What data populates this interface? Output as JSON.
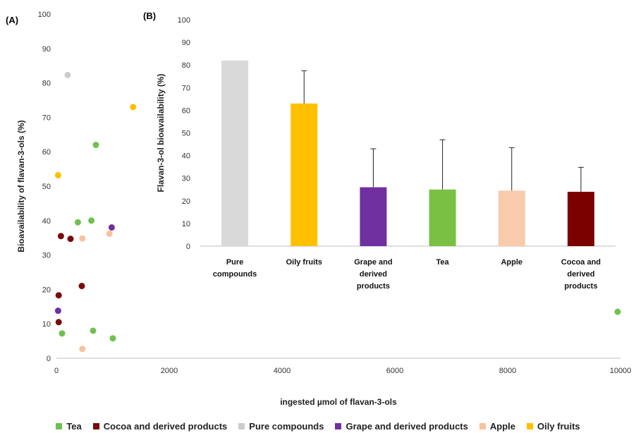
{
  "chart_data": [
    {
      "type": "scatter",
      "panel_label": "(A)",
      "xlabel": "ingested µmol of flavan-3-ols",
      "ylabel": "Bioavailability  of flavan-3-ols (%)",
      "xlim": [
        0,
        10000
      ],
      "ylim": [
        0,
        100
      ],
      "xticks": [
        0,
        2000,
        4000,
        6000,
        8000,
        10000
      ],
      "yticks": [
        0,
        10,
        20,
        30,
        40,
        50,
        60,
        70,
        80,
        90,
        100
      ],
      "grid": false,
      "legend_position": "bottom",
      "series": [
        {
          "name": "Tea",
          "color": "#70c050",
          "points": [
            [
              700,
              62
            ],
            [
              380,
              39.5
            ],
            [
              620,
              40
            ],
            [
              100,
              7.2
            ],
            [
              650,
              8
            ],
            [
              1000,
              5.8
            ],
            [
              9950,
              13.5
            ]
          ]
        },
        {
          "name": "Cocoa and derived products",
          "color": "#7a0b0b",
          "points": [
            [
              80,
              35.5
            ],
            [
              250,
              34.7
            ],
            [
              450,
              21
            ],
            [
              40,
              18.3
            ],
            [
              40,
              10.5
            ]
          ]
        },
        {
          "name": "Pure compounds",
          "color": "#cccccc",
          "points": [
            [
              200,
              82.3
            ]
          ]
        },
        {
          "name": "Grape and derived products",
          "color": "#7030a0",
          "points": [
            [
              980,
              38
            ],
            [
              30,
              13.8
            ]
          ]
        },
        {
          "name": "Apple",
          "color": "#f9c29a",
          "points": [
            [
              460,
              34.8
            ],
            [
              940,
              36.2
            ],
            [
              460,
              2.7
            ]
          ]
        },
        {
          "name": "Oily fruits",
          "color": "#ffbf00",
          "points": [
            [
              1360,
              73
            ],
            [
              30,
              53.2
            ]
          ]
        }
      ]
    },
    {
      "type": "bar",
      "panel_label": "(B)",
      "ylabel": "Flavan-3-ol bioavailability (%)",
      "ylim": [
        0,
        100
      ],
      "yticks": [
        0,
        10,
        20,
        30,
        40,
        50,
        60,
        70,
        80,
        90,
        100
      ],
      "categories": [
        [
          "Pure",
          "compounds"
        ],
        [
          "Oily fruits"
        ],
        [
          "Grape and",
          "derived",
          "products"
        ],
        [
          "Tea"
        ],
        [
          "Apple"
        ],
        [
          "Cocoa and",
          "derived",
          "products"
        ]
      ],
      "values": [
        82,
        63,
        26,
        25,
        24.5,
        24
      ],
      "error_upper": [
        null,
        77.5,
        43,
        47,
        43.5,
        34.8
      ],
      "colors": [
        "#d9d9d9",
        "#ffc000",
        "#7030a0",
        "#7ac143",
        "#f8cbad",
        "#7b0000"
      ]
    }
  ]
}
